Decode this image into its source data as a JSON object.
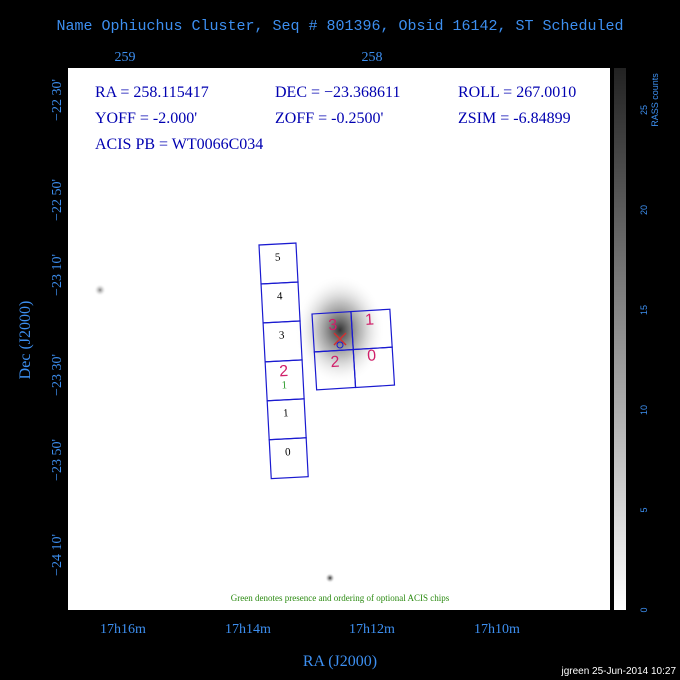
{
  "title": "Name Ophiuchus Cluster, Seq # 801396, Obsid 16142, ST Scheduled",
  "top_ticks": [
    "259",
    "258"
  ],
  "left_ticks": [
    "−22 30'",
    "−22 50'",
    "−23 10'",
    "−23 30'",
    "−23 50'",
    "−24 10'"
  ],
  "y_label": "Dec (J2000)",
  "bottom_ticks": [
    "17h16m",
    "17h14m",
    "17h12m",
    "17h10m"
  ],
  "x_label": "RA (J2000)",
  "info": {
    "ra": "RA = 258.115417",
    "dec": "DEC = −23.368611",
    "roll": "ROLL = 267.0010",
    "yoff": "YOFF =  -2.000'",
    "zoff": "ZOFF = -0.2500'",
    "zsim": "ZSIM = -6.84899",
    "acis_pb": "ACIS PB = WT0066C034"
  },
  "colorbar": {
    "label": "RASS counts",
    "ticks": [
      "0",
      "5",
      "10",
      "15",
      "20",
      "25"
    ]
  },
  "acis_s_chips": [
    "5",
    "4",
    "3",
    "2",
    "1",
    "0"
  ],
  "optional_chip": "1",
  "acis_i_chips": [
    "3",
    "1",
    "2",
    "0"
  ],
  "note": "Green denotes presence and ordering of optional ACIS chips",
  "credit": "jgreen 25-Jun-2014 10:27"
}
